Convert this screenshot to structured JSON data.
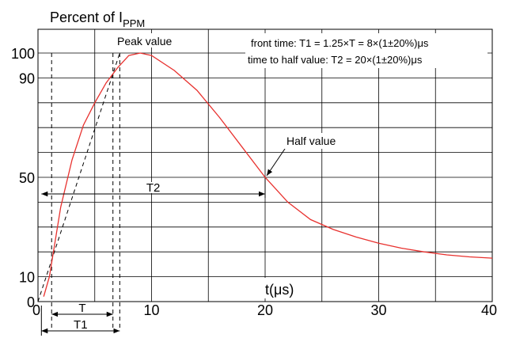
{
  "chart_data": {
    "type": "line",
    "title_main": "Percent of I",
    "title_sub": "PPM",
    "xlabel": "t(μs)",
    "xlim": [
      0,
      40
    ],
    "ylim": [
      0,
      100
    ],
    "x_ticks": [
      "0",
      "10",
      "20",
      "30",
      "40"
    ],
    "y_ticks": [
      "0",
      "10",
      "50",
      "90",
      "100"
    ],
    "y_tick_values": [
      0,
      10,
      50,
      90,
      100
    ],
    "x_tick_values": [
      0,
      10,
      20,
      30,
      40
    ],
    "grid": true,
    "annotations": {
      "peak": "Peak value",
      "half": "Half value",
      "front_time": "front time: T1 = 1.25×T = 8×(1±20%)μs",
      "half_time": "time to half value: T2 = 20×(1±20%)μs",
      "T": "T",
      "T1": "T1",
      "T2": "T2"
    },
    "series": [
      {
        "color": "#e8312e",
        "x": [
          0.5,
          1,
          2,
          3,
          4,
          5,
          6,
          7,
          8,
          9,
          10,
          12,
          14,
          16,
          18,
          20,
          22,
          24,
          26,
          28,
          30,
          32,
          34,
          36,
          38,
          40
        ],
        "y": [
          2,
          10,
          38,
          57,
          71,
          80,
          88,
          94,
          99,
          100,
          99,
          93,
          85,
          74,
          62,
          50,
          40,
          33,
          29,
          26,
          23.5,
          21.5,
          20,
          18.8,
          18,
          17.5
        ]
      }
    ],
    "front_line": {
      "x": [
        0,
        7.2
      ],
      "y": [
        0,
        100
      ]
    },
    "dashed_verticals": [
      1.2,
      6.6,
      7.2
    ],
    "T_range": [
      1.2,
      6.6
    ],
    "T1_range": [
      0.3,
      7.2
    ],
    "T2_range": [
      0.3,
      20
    ],
    "line_color": "#000000",
    "curve_color": "#e8312e"
  }
}
